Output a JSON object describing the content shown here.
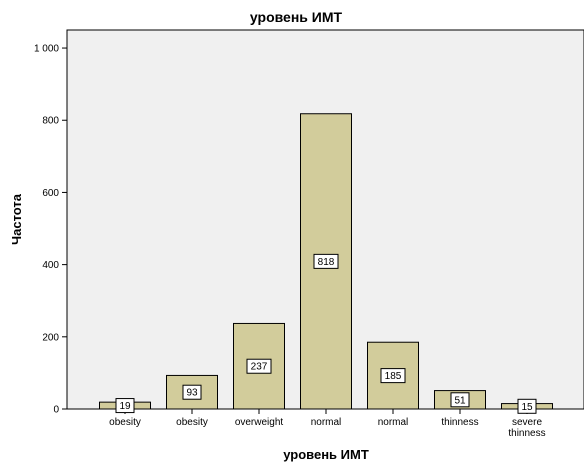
{
  "chart_data": {
    "type": "bar",
    "title": "уровень ИМТ",
    "xlabel": "уровень ИМТ",
    "ylabel": "Частота",
    "ylim": [
      0,
      1050
    ],
    "yticks": [
      0,
      200,
      400,
      600,
      800,
      1000
    ],
    "ytick_labels": [
      "0",
      "200",
      "400",
      "600",
      "800",
      "1 000"
    ],
    "categories": [
      "obesity",
      "obesity",
      "overweight",
      "normal",
      "normal",
      "thinness",
      "severe thinness"
    ],
    "category_lines": [
      [
        "obesity"
      ],
      [
        "obesity"
      ],
      [
        "overweight"
      ],
      [
        "normal"
      ],
      [
        "normal"
      ],
      [
        "thinness"
      ],
      [
        "severe",
        "thinness"
      ]
    ],
    "values": [
      19,
      93,
      237,
      818,
      185,
      51,
      15
    ],
    "data_labels": [
      "19",
      "93",
      "237",
      "818",
      "185",
      "51",
      "15"
    ],
    "grid": false,
    "legend": "none",
    "bar_color": "#d2cc9b",
    "plot_background": "#f0f0f0"
  }
}
